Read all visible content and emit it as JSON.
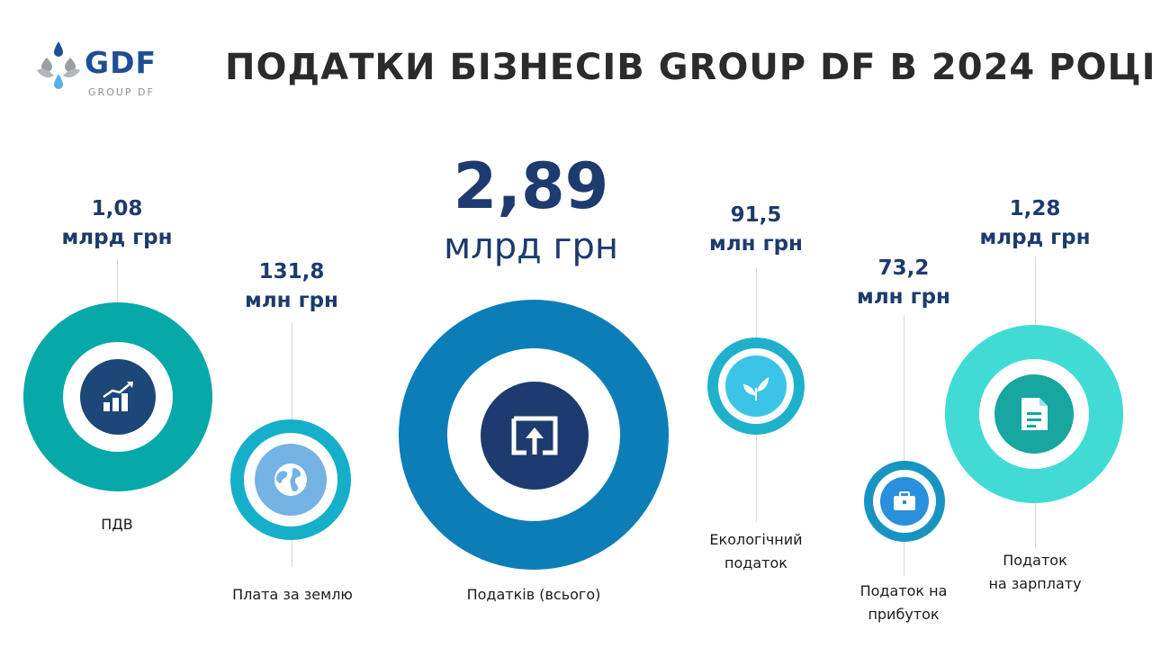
{
  "logo": {
    "name": "GDF",
    "sub": "GROUP DF"
  },
  "title": "ПОДАТКИ БІЗНЕСІВ GROUP DF В 2024 РОЦІ",
  "colors": {
    "title": "#2b2b2b",
    "value": "#1d3b6e",
    "vat_ring": "#07a8a8",
    "land_ring": "#16afc9",
    "total_ring": "#0d7db8",
    "eco_ring": "#1fb1cc",
    "profit_ring": "#1794c2",
    "salary_ring": "#41dbd6"
  },
  "items": {
    "vat": {
      "value": "1,08",
      "unit": "млрд грн",
      "label": "ПДВ",
      "icon": "growth-chart-icon"
    },
    "land": {
      "value": "131,8",
      "unit": "млн грн",
      "label": "Плата за землю",
      "icon": "globe-icon"
    },
    "total": {
      "value": "2,89",
      "unit": "млрд грн",
      "label": "Податків (всього)",
      "icon": "upload-screen-icon"
    },
    "eco": {
      "value": "91,5",
      "unit": "млн грн",
      "label1": "Екологічний",
      "label2": "податок",
      "icon": "leaf-icon"
    },
    "profit": {
      "value": "73,2",
      "unit": "млн грн",
      "label1": "Податок на",
      "label2": "прибуток",
      "icon": "briefcase-icon"
    },
    "salary": {
      "value": "1,28",
      "unit": "млрд грн",
      "label1": "Податок",
      "label2": "на зарплату",
      "icon": "document-icon"
    }
  }
}
